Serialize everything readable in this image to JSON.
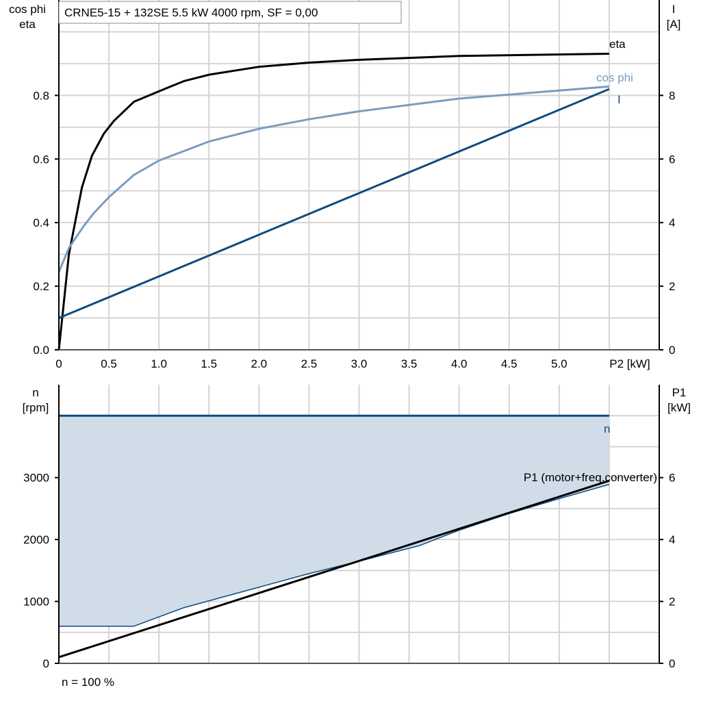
{
  "chart_data": [
    {
      "type": "line",
      "title": "CRNE5-15 + 132SE   5.5 kW   4000 rpm, SF = 0,00",
      "xlabel": "P2 [kW]",
      "ylabel": [
        "cos phi",
        "eta"
      ],
      "y2label": [
        "I",
        "[A]"
      ],
      "xlim": [
        0,
        6
      ],
      "ylim": [
        0,
        1.1
      ],
      "y2lim": [
        0,
        11
      ],
      "xticks": [
        "0",
        "0.5",
        "1.0",
        "1.5",
        "2.0",
        "2.5",
        "3.0",
        "3.5",
        "4.0",
        "4.5",
        "5.0"
      ],
      "yticks": [
        "0.0",
        "0.2",
        "0.4",
        "0.6",
        "0.8"
      ],
      "y2ticks": [
        "0",
        "2",
        "4",
        "6",
        "8"
      ],
      "grid": true,
      "series": [
        {
          "name": "eta",
          "axis": "left",
          "color": "#000000",
          "x": [
            0,
            0.1,
            0.23,
            0.33,
            0.45,
            0.55,
            0.75,
            1.0,
            1.25,
            1.5,
            2.0,
            2.5,
            3.0,
            4.0,
            5.5
          ],
          "y": [
            0,
            0.3,
            0.51,
            0.61,
            0.68,
            0.72,
            0.78,
            0.813,
            0.845,
            0.865,
            0.89,
            0.903,
            0.912,
            0.924,
            0.931
          ]
        },
        {
          "name": "cos phi",
          "axis": "left",
          "color": "#7a9cbf",
          "x": [
            0,
            0.1,
            0.25,
            0.35,
            0.5,
            0.75,
            1.0,
            1.5,
            2.0,
            2.5,
            3.0,
            4.0,
            5.5
          ],
          "y": [
            0.245,
            0.32,
            0.39,
            0.43,
            0.48,
            0.55,
            0.595,
            0.655,
            0.695,
            0.725,
            0.75,
            0.79,
            0.828
          ]
        },
        {
          "name": "I",
          "axis": "right",
          "color": "#0d4a80",
          "x": [
            0,
            5.5
          ],
          "y": [
            1.0,
            8.2
          ]
        }
      ]
    },
    {
      "type": "line",
      "xlim": [
        0,
        6
      ],
      "ylim": [
        0,
        4500
      ],
      "y2lim": [
        0,
        9
      ],
      "ylabel": [
        "n",
        "[rpm]"
      ],
      "y2label": [
        "P1",
        "[kW]"
      ],
      "yticks": [
        "0",
        "1000",
        "2000",
        "3000"
      ],
      "y2ticks": [
        "0",
        "2",
        "4",
        "6"
      ],
      "footnote": "n = 100 %",
      "grid": true,
      "fill_color": "#d0dce8",
      "series": [
        {
          "name": "n",
          "axis": "left",
          "color": "#0d4a80",
          "x": [
            0,
            5.5
          ],
          "y": [
            4000,
            4000
          ]
        },
        {
          "axis": "left",
          "color": "#0d4a80",
          "x": [
            0,
            0.75,
            1.25,
            2.0,
            2.5,
            3.0,
            3.6,
            4.0,
            4.5,
            5.0,
            5.5
          ],
          "y": [
            600,
            600,
            900,
            1230,
            1450,
            1650,
            1900,
            2150,
            2420,
            2660,
            2890
          ]
        },
        {
          "name": "P1 (motor+freq.converter)",
          "axis": "right",
          "color": "#000000",
          "x": [
            0,
            5.5
          ],
          "y": [
            0.2,
            5.9
          ]
        }
      ]
    }
  ]
}
